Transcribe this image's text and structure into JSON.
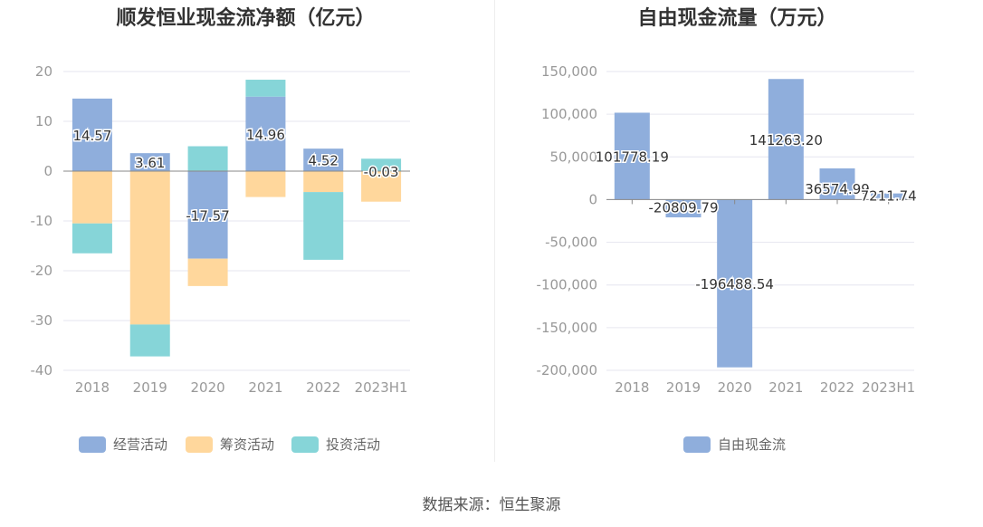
{
  "source": "数据来源：恒生聚源",
  "chart_data": [
    {
      "type": "bar",
      "stacked": true,
      "title": "顺发恒业现金流净额（亿元）",
      "categories": [
        "2018",
        "2019",
        "2020",
        "2021",
        "2022",
        "2023H1"
      ],
      "ylim": [
        -40,
        20
      ],
      "yticks": [
        20,
        10,
        0,
        -10,
        -20,
        -30,
        -40
      ],
      "series": [
        {
          "name": "经营活动",
          "color": "#8FAEDC",
          "values": [
            14.57,
            3.61,
            -17.57,
            14.96,
            4.52,
            -0.03
          ]
        },
        {
          "name": "筹资活动",
          "color": "#FFD79C",
          "values": [
            -10.5,
            -30.8,
            -5.5,
            -5.2,
            -4.2,
            -6.1
          ]
        },
        {
          "name": "投资活动",
          "color": "#86D5D8",
          "values": [
            -6.0,
            -6.4,
            5.0,
            3.4,
            -13.6,
            2.5
          ]
        }
      ],
      "data_labels": [
        "14.57",
        "3.61",
        "-17.57",
        "14.96",
        "4.52",
        "-0.03"
      ],
      "legend": [
        "经营活动",
        "筹资活动",
        "投资活动"
      ]
    },
    {
      "type": "bar",
      "title": "自由现金流量（万元）",
      "categories": [
        "2018",
        "2019",
        "2020",
        "2021",
        "2022",
        "2023H1"
      ],
      "ylim": [
        -200000,
        150000
      ],
      "yticks": [
        "150,000",
        "100,000",
        "50,000",
        "0",
        "-50,000",
        "-100,000",
        "-150,000",
        "-200,000"
      ],
      "series": [
        {
          "name": "自由现金流",
          "color": "#8FAEDC",
          "values": [
            101778.19,
            -20809.79,
            -196488.54,
            141263.2,
            36574.99,
            7211.74
          ]
        }
      ],
      "data_labels": [
        "101778.19",
        "-20809.79",
        "-196488.54",
        "141263.20",
        "36574.99",
        "7211.74"
      ],
      "legend": [
        "自由现金流"
      ]
    }
  ]
}
